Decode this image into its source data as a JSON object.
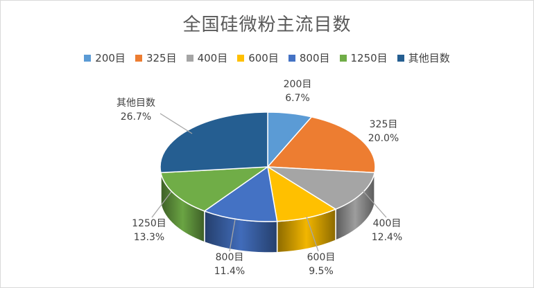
{
  "chart_data": {
    "type": "pie",
    "title": "全国硅微粉主流目数",
    "legend_position": "top",
    "slices": [
      {
        "label": "200目",
        "value": 6.7,
        "percent_label": "6.7%",
        "color": "#5B9BD5"
      },
      {
        "label": "325目",
        "value": 20.0,
        "percent_label": "20.0%",
        "color": "#ED7D31"
      },
      {
        "label": "400目",
        "value": 12.4,
        "percent_label": "12.4%",
        "color": "#A5A5A5"
      },
      {
        "label": "600目",
        "value": 9.5,
        "percent_label": "9.5%",
        "color": "#FFC000"
      },
      {
        "label": "800目",
        "value": 11.4,
        "percent_label": "11.4%",
        "color": "#4472C4"
      },
      {
        "label": "1250目",
        "value": 13.3,
        "percent_label": "13.3%",
        "color": "#70AD47"
      },
      {
        "label": "其他目数",
        "value": 26.7,
        "percent_label": "26.7%",
        "color": "#255E91"
      }
    ]
  }
}
